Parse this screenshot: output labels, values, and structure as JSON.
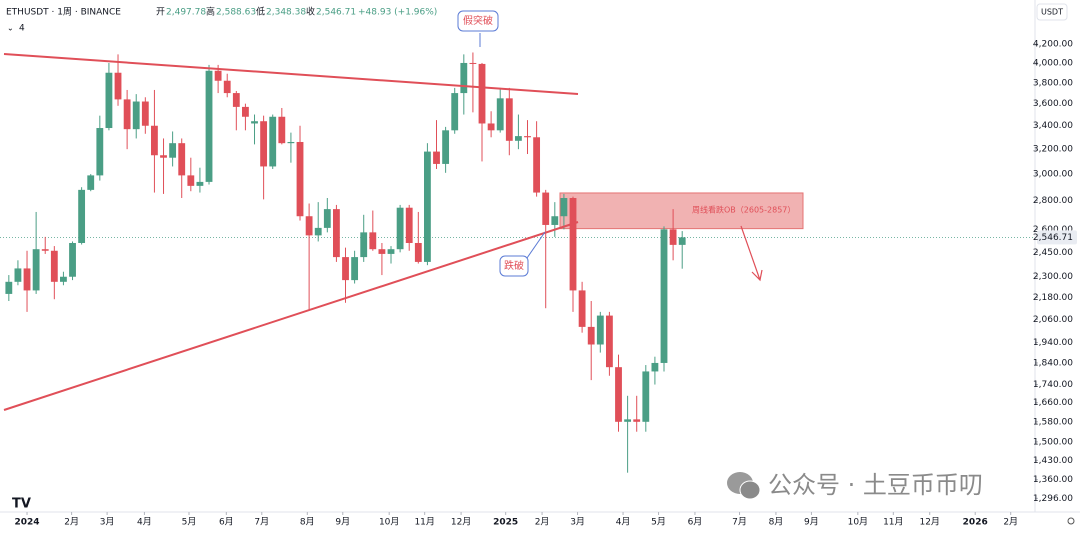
{
  "header": {
    "symbol": "ETHUSDT · 1周 · BINANCE",
    "open_label": "开",
    "open": "2,497.78",
    "high_label": "高",
    "high": "2,588.63",
    "low_label": "低",
    "low": "2,348.38",
    "close_label": "收",
    "close": "2,546.71",
    "change": "+48.93 (+1.96%)",
    "indicator_count": "4",
    "currency": "USDT"
  },
  "watermark": "公众号 · 土豆币币叨",
  "chart_data": {
    "type": "candlestick",
    "log_scale": true,
    "annotations": {
      "fake_breakout": "假突破",
      "breakdown": "跌破"
    },
    "zone": {
      "label": "周线看跌OB（2605-2857）",
      "low": 2605,
      "high": 2857,
      "color": "#e57373"
    },
    "up_color": "#4a9e85",
    "down_color": "#e04f58",
    "last_price": 2546.71,
    "x": [
      0,
      1,
      2,
      3,
      4,
      5,
      6,
      7,
      8,
      9,
      10,
      11,
      12,
      13,
      14,
      15,
      16,
      17,
      18,
      19,
      20,
      21,
      22,
      23,
      24,
      25,
      26,
      27,
      28,
      29,
      30,
      31,
      32,
      33,
      34,
      35,
      36,
      37,
      38,
      39,
      40,
      41,
      42,
      43,
      44,
      45,
      46,
      47,
      48,
      49,
      50,
      51,
      52,
      53,
      54,
      55,
      56,
      57,
      58,
      59,
      60,
      61,
      62,
      63,
      64,
      65,
      66,
      67,
      68,
      69,
      70,
      71,
      72,
      73,
      74
    ],
    "open": [
      2200,
      2270,
      2350,
      2220,
      2470,
      2460,
      2270,
      2300,
      2510,
      2880,
      2990,
      3380,
      3900,
      3640,
      3370,
      3620,
      3400,
      3150,
      3130,
      3250,
      2990,
      2910,
      2940,
      3920,
      3820,
      3700,
      3570,
      3420,
      3440,
      3060,
      3480,
      3250,
      3260,
      2690,
      2560,
      2610,
      2740,
      2420,
      2280,
      2420,
      2580,
      2470,
      2440,
      2470,
      2750,
      2510,
      2390,
      3180,
      3080,
      3360,
      3700,
      4000,
      3990,
      3420,
      3360,
      3650,
      3270,
      3310,
      3300,
      2860,
      2630,
      2690,
      2820,
      2220,
      2020,
      1930,
      2080,
      1820,
      1580,
      1590,
      1580,
      1800,
      1840,
      2600,
      2497.78
    ],
    "high": [
      2310,
      2400,
      2460,
      2720,
      2550,
      2490,
      2330,
      2520,
      2900,
      3000,
      3490,
      4000,
      4090,
      3730,
      3690,
      3660,
      3730,
      3290,
      3350,
      3290,
      3130,
      3050,
      3980,
      3980,
      3890,
      3720,
      3600,
      3500,
      3490,
      3500,
      3560,
      3340,
      3400,
      2780,
      2790,
      2820,
      2770,
      2480,
      2460,
      2700,
      2730,
      2510,
      2490,
      2770,
      2770,
      2720,
      3250,
      3450,
      3390,
      3750,
      4090,
      4110,
      4000,
      3530,
      3750,
      3750,
      3500,
      3450,
      3440,
      2880,
      2790,
      2850,
      2830,
      2270,
      2160,
      2100,
      2100,
      1880,
      1690,
      1690,
      1830,
      1870,
      2620,
      2740,
      2588.63
    ],
    "low": [
      2160,
      2250,
      2100,
      2200,
      2440,
      2170,
      2250,
      2280,
      2500,
      2870,
      2950,
      3360,
      3580,
      3200,
      3290,
      3330,
      2860,
      2850,
      3060,
      2820,
      2870,
      2860,
      2920,
      3700,
      3660,
      3360,
      3360,
      3240,
      2810,
      3040,
      3240,
      3090,
      2660,
      2110,
      2520,
      2580,
      2390,
      2150,
      2260,
      2390,
      2460,
      2310,
      2380,
      2450,
      2460,
      2380,
      2370,
      3040,
      3010,
      3330,
      3500,
      3520,
      3100,
      3300,
      3340,
      3150,
      3200,
      3160,
      2830,
      2120,
      2550,
      2600,
      2100,
      1990,
      1760,
      1890,
      1780,
      1540,
      1385,
      1540,
      1540,
      1740,
      1800,
      2400,
      2348.38
    ],
    "close": [
      2270,
      2350,
      2220,
      2470,
      2460,
      2270,
      2300,
      2510,
      2880,
      2990,
      3380,
      3900,
      3640,
      3370,
      3620,
      3400,
      3150,
      3130,
      3250,
      2990,
      2910,
      2940,
      3920,
      3820,
      3700,
      3570,
      3480,
      3440,
      3060,
      3480,
      3250,
      3260,
      2690,
      2560,
      2610,
      2740,
      2420,
      2280,
      2420,
      2580,
      2470,
      2440,
      2470,
      2750,
      2510,
      2390,
      3180,
      3080,
      3360,
      3700,
      4000,
      3990,
      3420,
      3360,
      3650,
      3270,
      3310,
      3300,
      2860,
      2630,
      2690,
      2820,
      2220,
      2020,
      1930,
      2080,
      1820,
      1580,
      1590,
      1580,
      1800,
      1840,
      2600,
      2497.78,
      2546.71
    ],
    "xlim": [
      -0.97,
      112.77
    ],
    "xticks": [
      {
        "value": 2,
        "label": "2024"
      },
      {
        "value": 6.9,
        "label": "2月"
      },
      {
        "value": 10.8,
        "label": "3月"
      },
      {
        "value": 14.9,
        "label": "4月"
      },
      {
        "value": 19.8,
        "label": "5月"
      },
      {
        "value": 23.9,
        "label": "6月"
      },
      {
        "value": 27.8,
        "label": "7月"
      },
      {
        "value": 32.8,
        "label": "8月"
      },
      {
        "value": 36.7,
        "label": "9月"
      },
      {
        "value": 41.8,
        "label": "10月"
      },
      {
        "value": 45.7,
        "label": "11月"
      },
      {
        "value": 49.7,
        "label": "12月"
      },
      {
        "value": 54.6,
        "label": "2025"
      },
      {
        "value": 58.6,
        "label": "2月"
      },
      {
        "value": 62.5,
        "label": "3月"
      },
      {
        "value": 67.5,
        "label": "4月"
      },
      {
        "value": 71.4,
        "label": "5月"
      },
      {
        "value": 75.4,
        "label": "6月"
      },
      {
        "value": 80.3,
        "label": "7月"
      },
      {
        "value": 84.3,
        "label": "8月"
      },
      {
        "value": 88.2,
        "label": "9月"
      },
      {
        "value": 93.3,
        "label": "10月"
      },
      {
        "value": 97.2,
        "label": "11月"
      },
      {
        "value": 101.2,
        "label": "12月"
      },
      {
        "value": 106.2,
        "label": "2026"
      },
      {
        "value": 110.1,
        "label": "2月"
      }
    ],
    "ylim": [
      1251,
      4708
    ],
    "yticks": [
      {
        "value": 4200,
        "label": "4,200.00"
      },
      {
        "value": 4000,
        "label": "4,000.00"
      },
      {
        "value": 3800,
        "label": "3,800.00"
      },
      {
        "value": 3600,
        "label": "3,600.00"
      },
      {
        "value": 3400,
        "label": "3,400.00"
      },
      {
        "value": 3200,
        "label": "3,200.00"
      },
      {
        "value": 3000,
        "label": "3,000.00"
      },
      {
        "value": 2800,
        "label": "2,800.00"
      },
      {
        "value": 2600,
        "label": "2,600.00"
      },
      {
        "value": 2450,
        "label": "2,450.00"
      },
      {
        "value": 2300,
        "label": "2,300.00"
      },
      {
        "value": 2180,
        "label": "2,180.00"
      },
      {
        "value": 2060,
        "label": "2,060.00"
      },
      {
        "value": 1940,
        "label": "1,940.00"
      },
      {
        "value": 1840,
        "label": "1,840.00"
      },
      {
        "value": 1740,
        "label": "1,740.00"
      },
      {
        "value": 1660,
        "label": "1,660.00"
      },
      {
        "value": 1580,
        "label": "1,580.00"
      },
      {
        "value": 1500,
        "label": "1,500.00"
      },
      {
        "value": 1430,
        "label": "1,430.00"
      },
      {
        "value": 1360,
        "label": "1,360.00"
      },
      {
        "value": 1296,
        "label": "1,296.00"
      }
    ]
  }
}
